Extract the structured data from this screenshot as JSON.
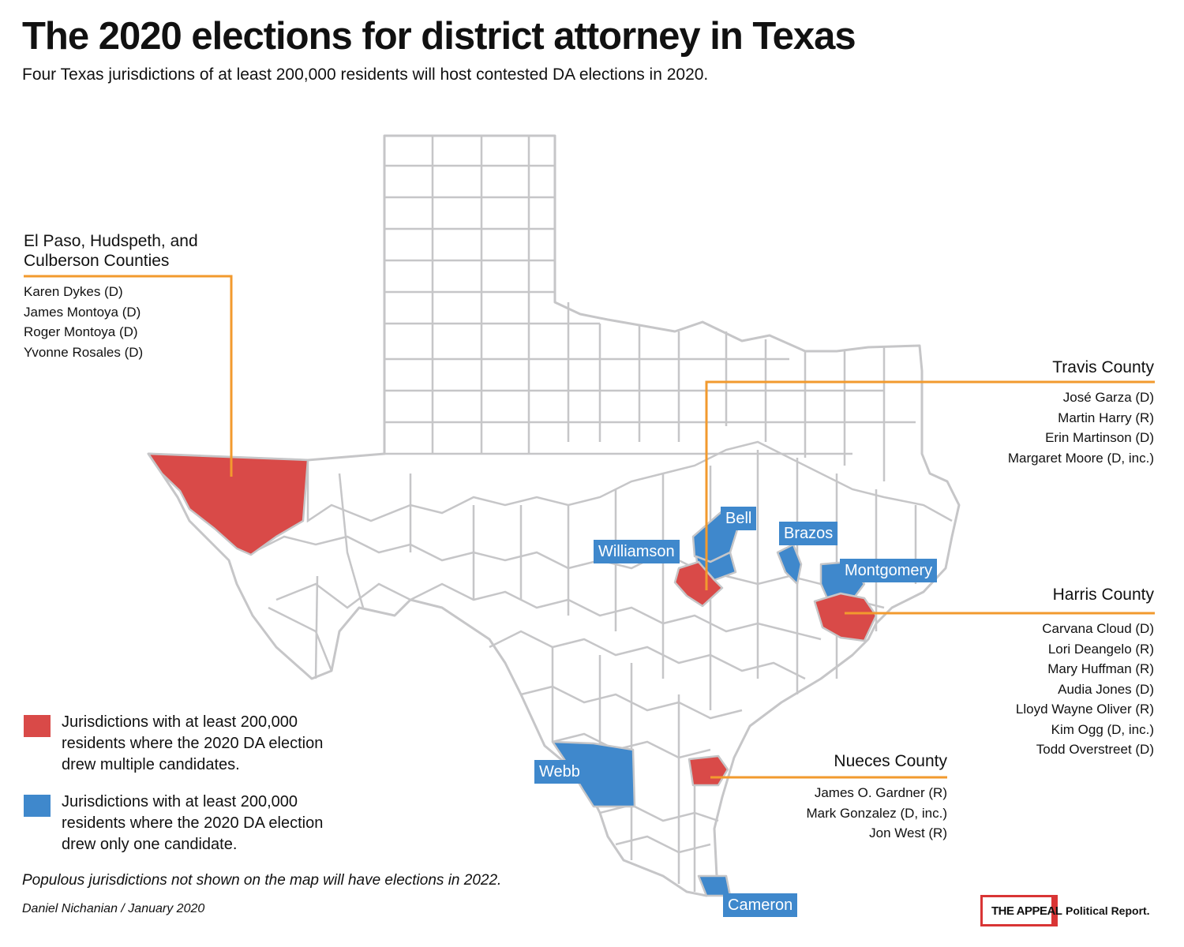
{
  "title": "The 2020 elections for district attorney in Texas",
  "subtitle": "Four Texas jurisdictions of at least 200,000 residents will host contested DA elections in 2020.",
  "colors": {
    "contested": "#d94a48",
    "uncontested": "#3f88cc",
    "leader": "#f29a2e",
    "county_border": "#c6c6c8"
  },
  "callouts": {
    "el_paso": {
      "title_line1": "El Paso, Hudspeth, and",
      "title_line2": "Culberson Counties",
      "candidates": [
        "Karen Dykes (D)",
        "James Montoya (D)",
        "Roger Montoya (D)",
        "Yvonne Rosales (D)"
      ]
    },
    "travis": {
      "title": "Travis County",
      "candidates": [
        "José Garza (D)",
        "Martin Harry (R)",
        "Erin Martinson (D)",
        "Margaret Moore (D, inc.)"
      ]
    },
    "harris": {
      "title": "Harris County",
      "candidates": [
        "Carvana Cloud (D)",
        "Lori Deangelo (R)",
        "Mary Huffman (R)",
        "Audia Jones (D)",
        "Lloyd Wayne Oliver (R)",
        "Kim Ogg (D, inc.)",
        "Todd Overstreet (D)"
      ]
    },
    "nueces": {
      "title": "Nueces County",
      "candidates": [
        "James O. Gardner (R)",
        "Mark Gonzalez (D, inc.)",
        "Jon West (R)"
      ]
    }
  },
  "county_labels": {
    "bell": "Bell",
    "brazos": "Brazos",
    "williamson": "Williamson",
    "montgomery": "Montgomery",
    "webb": "Webb",
    "cameron": "Cameron"
  },
  "legend": {
    "contested": "Jurisdictions with at least 200,000 residents where the 2020 DA election drew multiple candidates.",
    "uncontested": "Jurisdictions with at least 200,000 residents where the 2020 DA election drew only one candidate."
  },
  "note": "Populous jurisdictions not shown on the map will have elections in 2022.",
  "byline": "Daniel Nichanian / January 2020",
  "logo": {
    "name": "THE APPEAL",
    "tagline": "Political Report."
  }
}
